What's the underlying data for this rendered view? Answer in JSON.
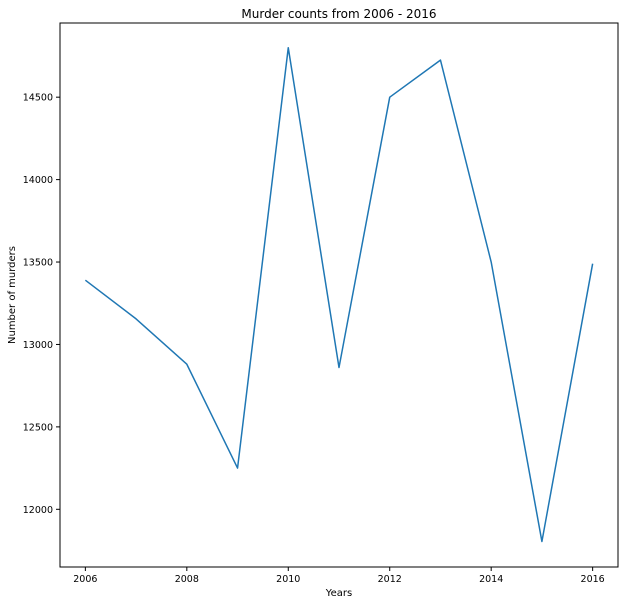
{
  "chart_data": {
    "type": "line",
    "title": "Murder counts from 2006 - 2016",
    "xlabel": "Years",
    "ylabel": "Number of murders",
    "xlim": [
      2005.5,
      2016.5
    ],
    "ylim": [
      11650,
      14950
    ],
    "x_ticks": [
      "2006",
      "2008",
      "2010",
      "2012",
      "2014",
      "2016"
    ],
    "y_ticks": [
      "12000",
      "12500",
      "13000",
      "13500",
      "14000",
      "14500"
    ],
    "grid": false,
    "series": [
      {
        "color": "#1f77b4",
        "x": [
          2006,
          2007,
          2008,
          2009,
          2010,
          2011,
          2012,
          2013,
          2014,
          2015,
          2016
        ],
        "y": [
          13390,
          13155,
          12880,
          12250,
          14800,
          12860,
          14500,
          14725,
          13500,
          11805,
          13490
        ]
      }
    ]
  }
}
